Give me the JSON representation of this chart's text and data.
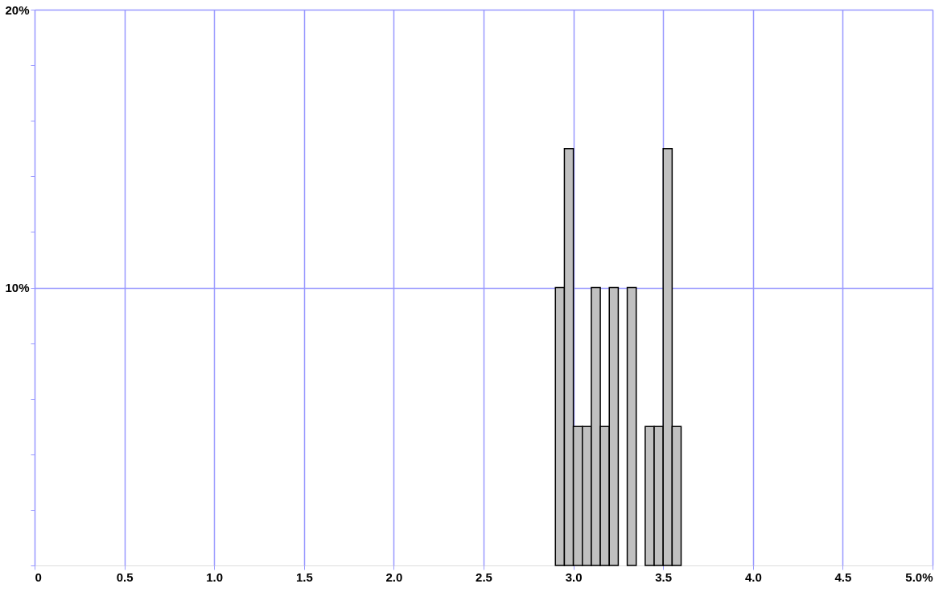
{
  "chart_data": {
    "type": "histogram",
    "bins": [
      2.9,
      2.95,
      3.0,
      3.05,
      3.1,
      3.15,
      3.2,
      3.25,
      3.3,
      3.35,
      3.4,
      3.45,
      3.5,
      3.55,
      3.6
    ],
    "values": [
      10,
      15,
      5,
      5,
      10,
      5,
      10,
      0,
      10,
      0,
      5,
      5,
      15,
      5
    ],
    "color": "#c0c0c0",
    "xlim": [
      0,
      5
    ],
    "ylim": [
      0,
      20
    ],
    "xticks": [
      0,
      0.5,
      {
        "value": 1,
        "label": "1.0"
      },
      1.5,
      {
        "value": 2,
        "label": "2.0"
      },
      2.5,
      {
        "value": 3,
        "label": "3.0"
      },
      3.5,
      {
        "value": 4,
        "label": "4.0"
      },
      4.5,
      {
        "value": 5,
        "label": "5.0%"
      }
    ],
    "yticks": [
      {
        "value": 0,
        "label": null
      },
      {
        "value": 2,
        "label": null
      },
      {
        "value": 4,
        "label": null
      },
      {
        "value": 6,
        "label": null
      },
      {
        "value": 8,
        "label": null
      },
      {
        "value": 10,
        "label": "10%"
      },
      {
        "value": 12,
        "label": null
      },
      {
        "value": 14,
        "label": null
      },
      {
        "value": 16,
        "label": null
      },
      {
        "value": 18,
        "label": null
      },
      {
        "value": 20,
        "label": "20%"
      }
    ],
    "grid": true
  }
}
